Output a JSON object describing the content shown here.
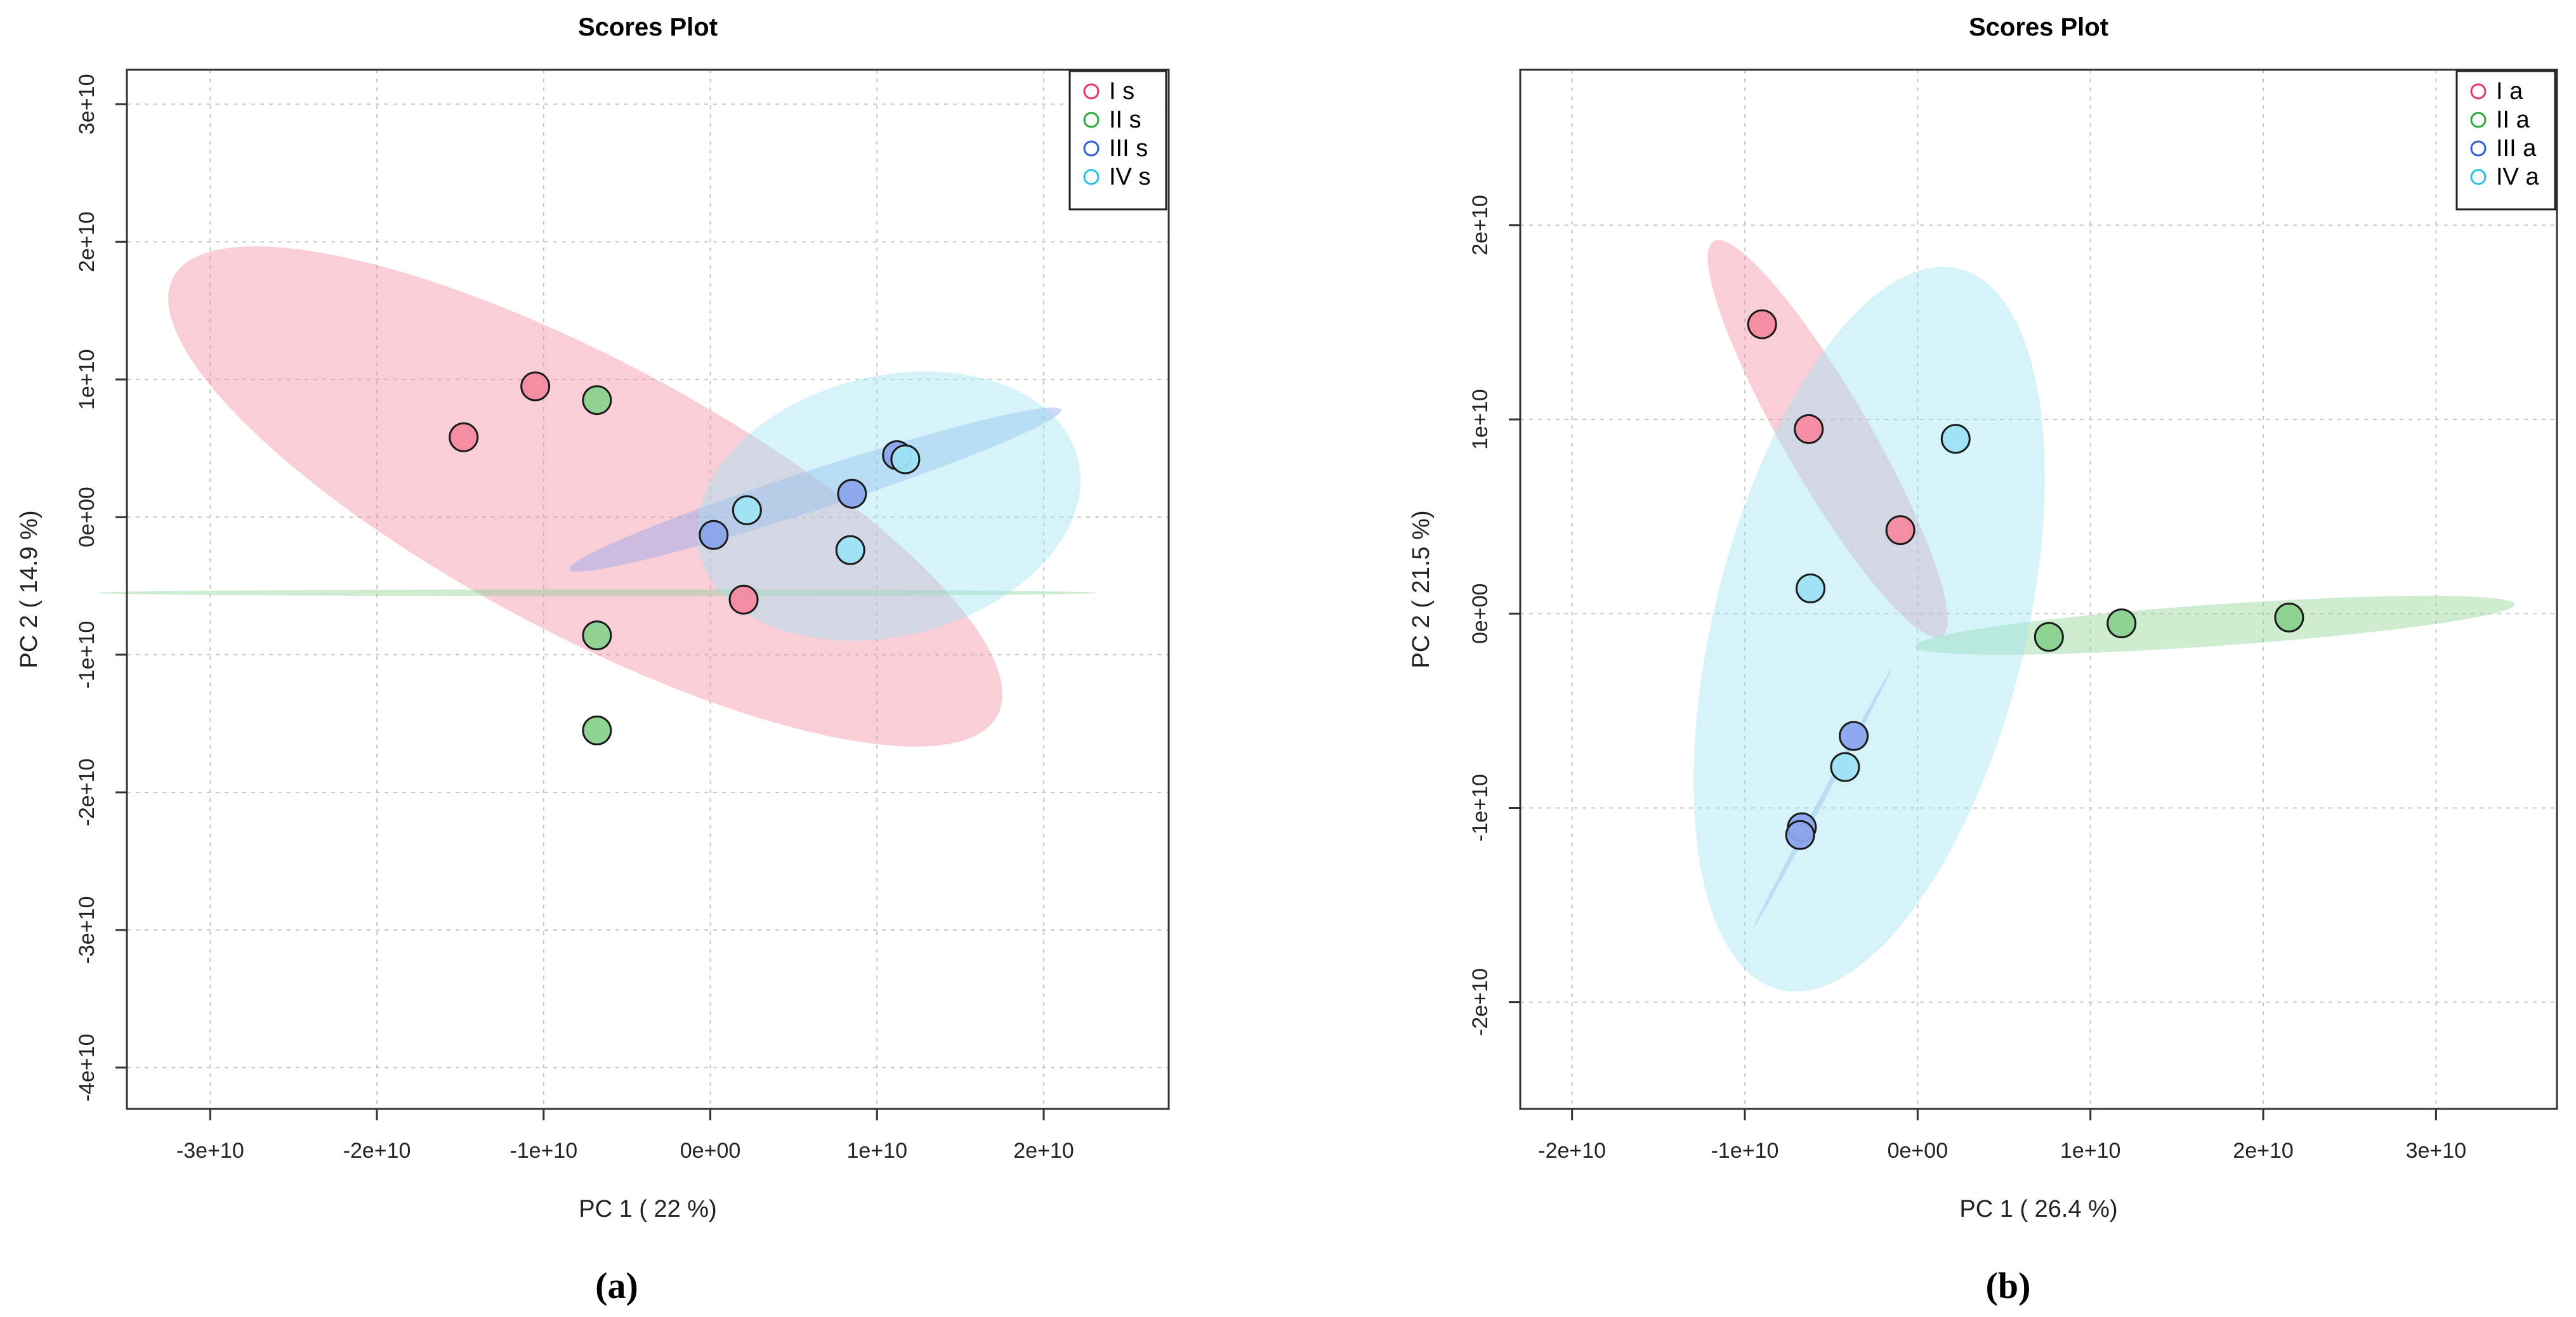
{
  "chart_data": [
    {
      "type": "scatter",
      "panel": "a",
      "caption": "(a)",
      "title": "Scores Plot",
      "xlabel": "PC 1 ( 22 %)",
      "ylabel": "PC 2 ( 14.9 %)",
      "xlim": [
        -35000000000.0,
        27500000000.0
      ],
      "ylim": [
        -43000000000.0,
        32500000000.0
      ],
      "grid": true,
      "legend_position": "top-right",
      "xticks": [
        {
          "value": -30000000000.0,
          "label": "-3e+10"
        },
        {
          "value": -20000000000.0,
          "label": "-2e+10"
        },
        {
          "value": -10000000000.0,
          "label": "-1e+10"
        },
        {
          "value": 0,
          "label": "0e+00"
        },
        {
          "value": 10000000000.0,
          "label": "1e+10"
        },
        {
          "value": 20000000000.0,
          "label": "2e+10"
        }
      ],
      "yticks": [
        {
          "value": -40000000000.0,
          "label": "-4e+10"
        },
        {
          "value": -30000000000.0,
          "label": "-3e+10"
        },
        {
          "value": -20000000000.0,
          "label": "-2e+10"
        },
        {
          "value": -10000000000.0,
          "label": "-1e+10"
        },
        {
          "value": 0,
          "label": "0e+00"
        },
        {
          "value": 10000000000.0,
          "label": "1e+10"
        },
        {
          "value": 20000000000.0,
          "label": "2e+10"
        },
        {
          "value": 30000000000.0,
          "label": "3e+10"
        }
      ],
      "series": [
        {
          "name": "I s",
          "color": "#e8365e",
          "fill": "#f48aa0",
          "points": [
            [
              -14800000000.0,
              5800000000.0
            ],
            [
              -10500000000.0,
              9500000000.0
            ],
            [
              2000000000.0,
              -6000000000.0
            ]
          ],
          "ellipse": {
            "cx": -7500000000.0,
            "cy": 1500000000.0,
            "rx": 28000000000.0,
            "ry": 8200000000.0,
            "angle": -28
          }
        },
        {
          "name": "II s",
          "color": "#2aa83a",
          "fill": "#8ad28f",
          "points": [
            [
              -6800000000.0,
              8500000000.0
            ],
            [
              -6800000000.0,
              -8600000000.0
            ],
            [
              -6800000000.0,
              -15500000000.0
            ]
          ],
          "ellipse": {
            "cx": -6800000000.0,
            "cy": -5500000000.0,
            "rx": 200000000.0,
            "ry": 30000000000.0,
            "angle": 90
          }
        },
        {
          "name": "III s",
          "color": "#2f5fd6",
          "fill": "#8aa4ec",
          "points": [
            [
              200000000.0,
              -1300000000.0
            ],
            [
              8500000000.0,
              1700000000.0
            ],
            [
              11200000000.0,
              4500000000.0
            ]
          ],
          "ellipse": {
            "cx": 6300000000.0,
            "cy": 2000000000.0,
            "rx": 15500000000.0,
            "ry": 1200000000.0,
            "angle": 18
          }
        },
        {
          "name": "IV s",
          "color": "#22c3e6",
          "fill": "#9ee2f4",
          "points": [
            [
              2200000000.0,
              500000000.0
            ],
            [
              8400000000.0,
              -2400000000.0
            ],
            [
              11700000000.0,
              4200000000.0
            ]
          ],
          "ellipse": {
            "cx": 10700000000.0,
            "cy": 800000000.0,
            "rx": 11700000000.0,
            "ry": 7800000000.0,
            "angle": 14
          }
        }
      ]
    },
    {
      "type": "scatter",
      "panel": "b",
      "caption": "(b)",
      "title": "Scores Plot",
      "xlabel": "PC 1 ( 26.4 %)",
      "ylabel": "PC 2 ( 21.5 %)",
      "xlim": [
        -23000000000.0,
        37000000000.0
      ],
      "ylim": [
        -25500000000.0,
        28000000000.0
      ],
      "grid": true,
      "legend_position": "top-right",
      "xticks": [
        {
          "value": -20000000000.0,
          "label": "-2e+10"
        },
        {
          "value": -10000000000.0,
          "label": "-1e+10"
        },
        {
          "value": 0,
          "label": "0e+00"
        },
        {
          "value": 10000000000.0,
          "label": "1e+10"
        },
        {
          "value": 20000000000.0,
          "label": "2e+10"
        },
        {
          "value": 30000000000.0,
          "label": "3e+10"
        }
      ],
      "yticks": [
        {
          "value": -20000000000.0,
          "label": "-2e+10"
        },
        {
          "value": -10000000000.0,
          "label": "-1e+10"
        },
        {
          "value": 0,
          "label": "0e+00"
        },
        {
          "value": 10000000000.0,
          "label": "1e+10"
        },
        {
          "value": 20000000000.0,
          "label": "2e+10"
        }
      ],
      "series": [
        {
          "name": "I a",
          "color": "#e8365e",
          "fill": "#f48aa0",
          "points": [
            [
              -9000000000.0,
              14900000000.0
            ],
            [
              -6300000000.0,
              9500000000.0
            ],
            [
              -1000000000.0,
              4300000000.0
            ]
          ],
          "ellipse": {
            "cx": -5200000000.0,
            "cy": 9000000000.0,
            "rx": 13200000000.0,
            "ry": 2500000000.0,
            "angle": -60
          }
        },
        {
          "name": "II a",
          "color": "#2aa83a",
          "fill": "#8ad28f",
          "points": [
            [
              7600000000.0,
              -1200000000.0
            ],
            [
              11800000000.0,
              -500000000.0
            ],
            [
              21500000000.0,
              -200000000.0
            ]
          ],
          "ellipse": {
            "cx": 17200000000.0,
            "cy": -600000000.0,
            "rx": 17400000000.0,
            "ry": 1200000000.0,
            "angle": 4
          }
        },
        {
          "name": "III a",
          "color": "#2f5fd6",
          "fill": "#8aa4ec",
          "points": [
            [
              -3700000000.0,
              -6300000000.0
            ],
            [
              -6700000000.0,
              -11000000000.0
            ],
            [
              -6800000000.0,
              -11400000000.0
            ]
          ],
          "ellipse": {
            "cx": -5500000000.0,
            "cy": -9500000000.0,
            "rx": 8500000000.0,
            "ry": 150000000.0,
            "angle": 62
          }
        },
        {
          "name": "IV a",
          "color": "#22c3e6",
          "fill": "#9ee2f4",
          "points": [
            [
              2200000000.0,
              9000000000.0
            ],
            [
              -6200000000.0,
              1300000000.0
            ],
            [
              -4200000000.0,
              -7900000000.0
            ]
          ],
          "ellipse": {
            "cx": -2800000000.0,
            "cy": -800000000.0,
            "rx": 21500000000.0,
            "ry": 9000000000.0,
            "angle": 76
          }
        }
      ]
    }
  ]
}
